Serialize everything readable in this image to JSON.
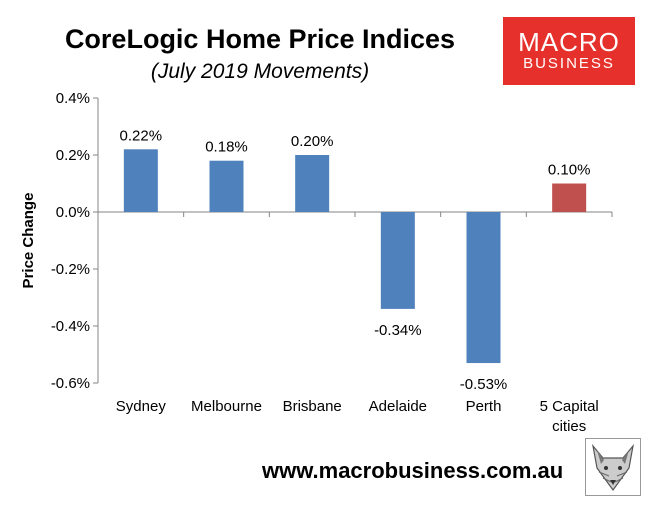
{
  "chart_data": {
    "type": "bar",
    "title": "CoreLogic Home Price Indices",
    "subtitle": "(July 2019 Movements)",
    "ylabel": "Price Change",
    "xlabel": "",
    "ylim": [
      -0.6,
      0.4
    ],
    "yticks": [
      0.4,
      0.2,
      0.0,
      -0.2,
      -0.4,
      -0.6
    ],
    "ytick_labels": [
      "0.4%",
      "0.2%",
      "0.0%",
      "-0.2%",
      "-0.4%",
      "-0.6%"
    ],
    "categories": [
      "Sydney",
      "Melbourne",
      "Brisbane",
      "Adelaide",
      "Perth",
      "5 Capital cities"
    ],
    "category_lines": [
      [
        "Sydney"
      ],
      [
        "Melbourne"
      ],
      [
        "Brisbane"
      ],
      [
        "Adelaide"
      ],
      [
        "Perth"
      ],
      [
        "5 Capital",
        "cities"
      ]
    ],
    "values": [
      0.22,
      0.18,
      0.2,
      -0.34,
      -0.53,
      0.1
    ],
    "data_labels": [
      "0.22%",
      "0.18%",
      "0.20%",
      "-0.34%",
      "-0.53%",
      "0.10%"
    ],
    "bar_colors": [
      "#4f81bd",
      "#4f81bd",
      "#4f81bd",
      "#4f81bd",
      "#4f81bd",
      "#c0504d"
    ],
    "grid": false,
    "legend": "none"
  },
  "branding": {
    "logo_top": "MACRO",
    "logo_bottom": "BUSINESS",
    "url": "www.macrobusiness.com.au",
    "logo_color": "#e5302b"
  }
}
